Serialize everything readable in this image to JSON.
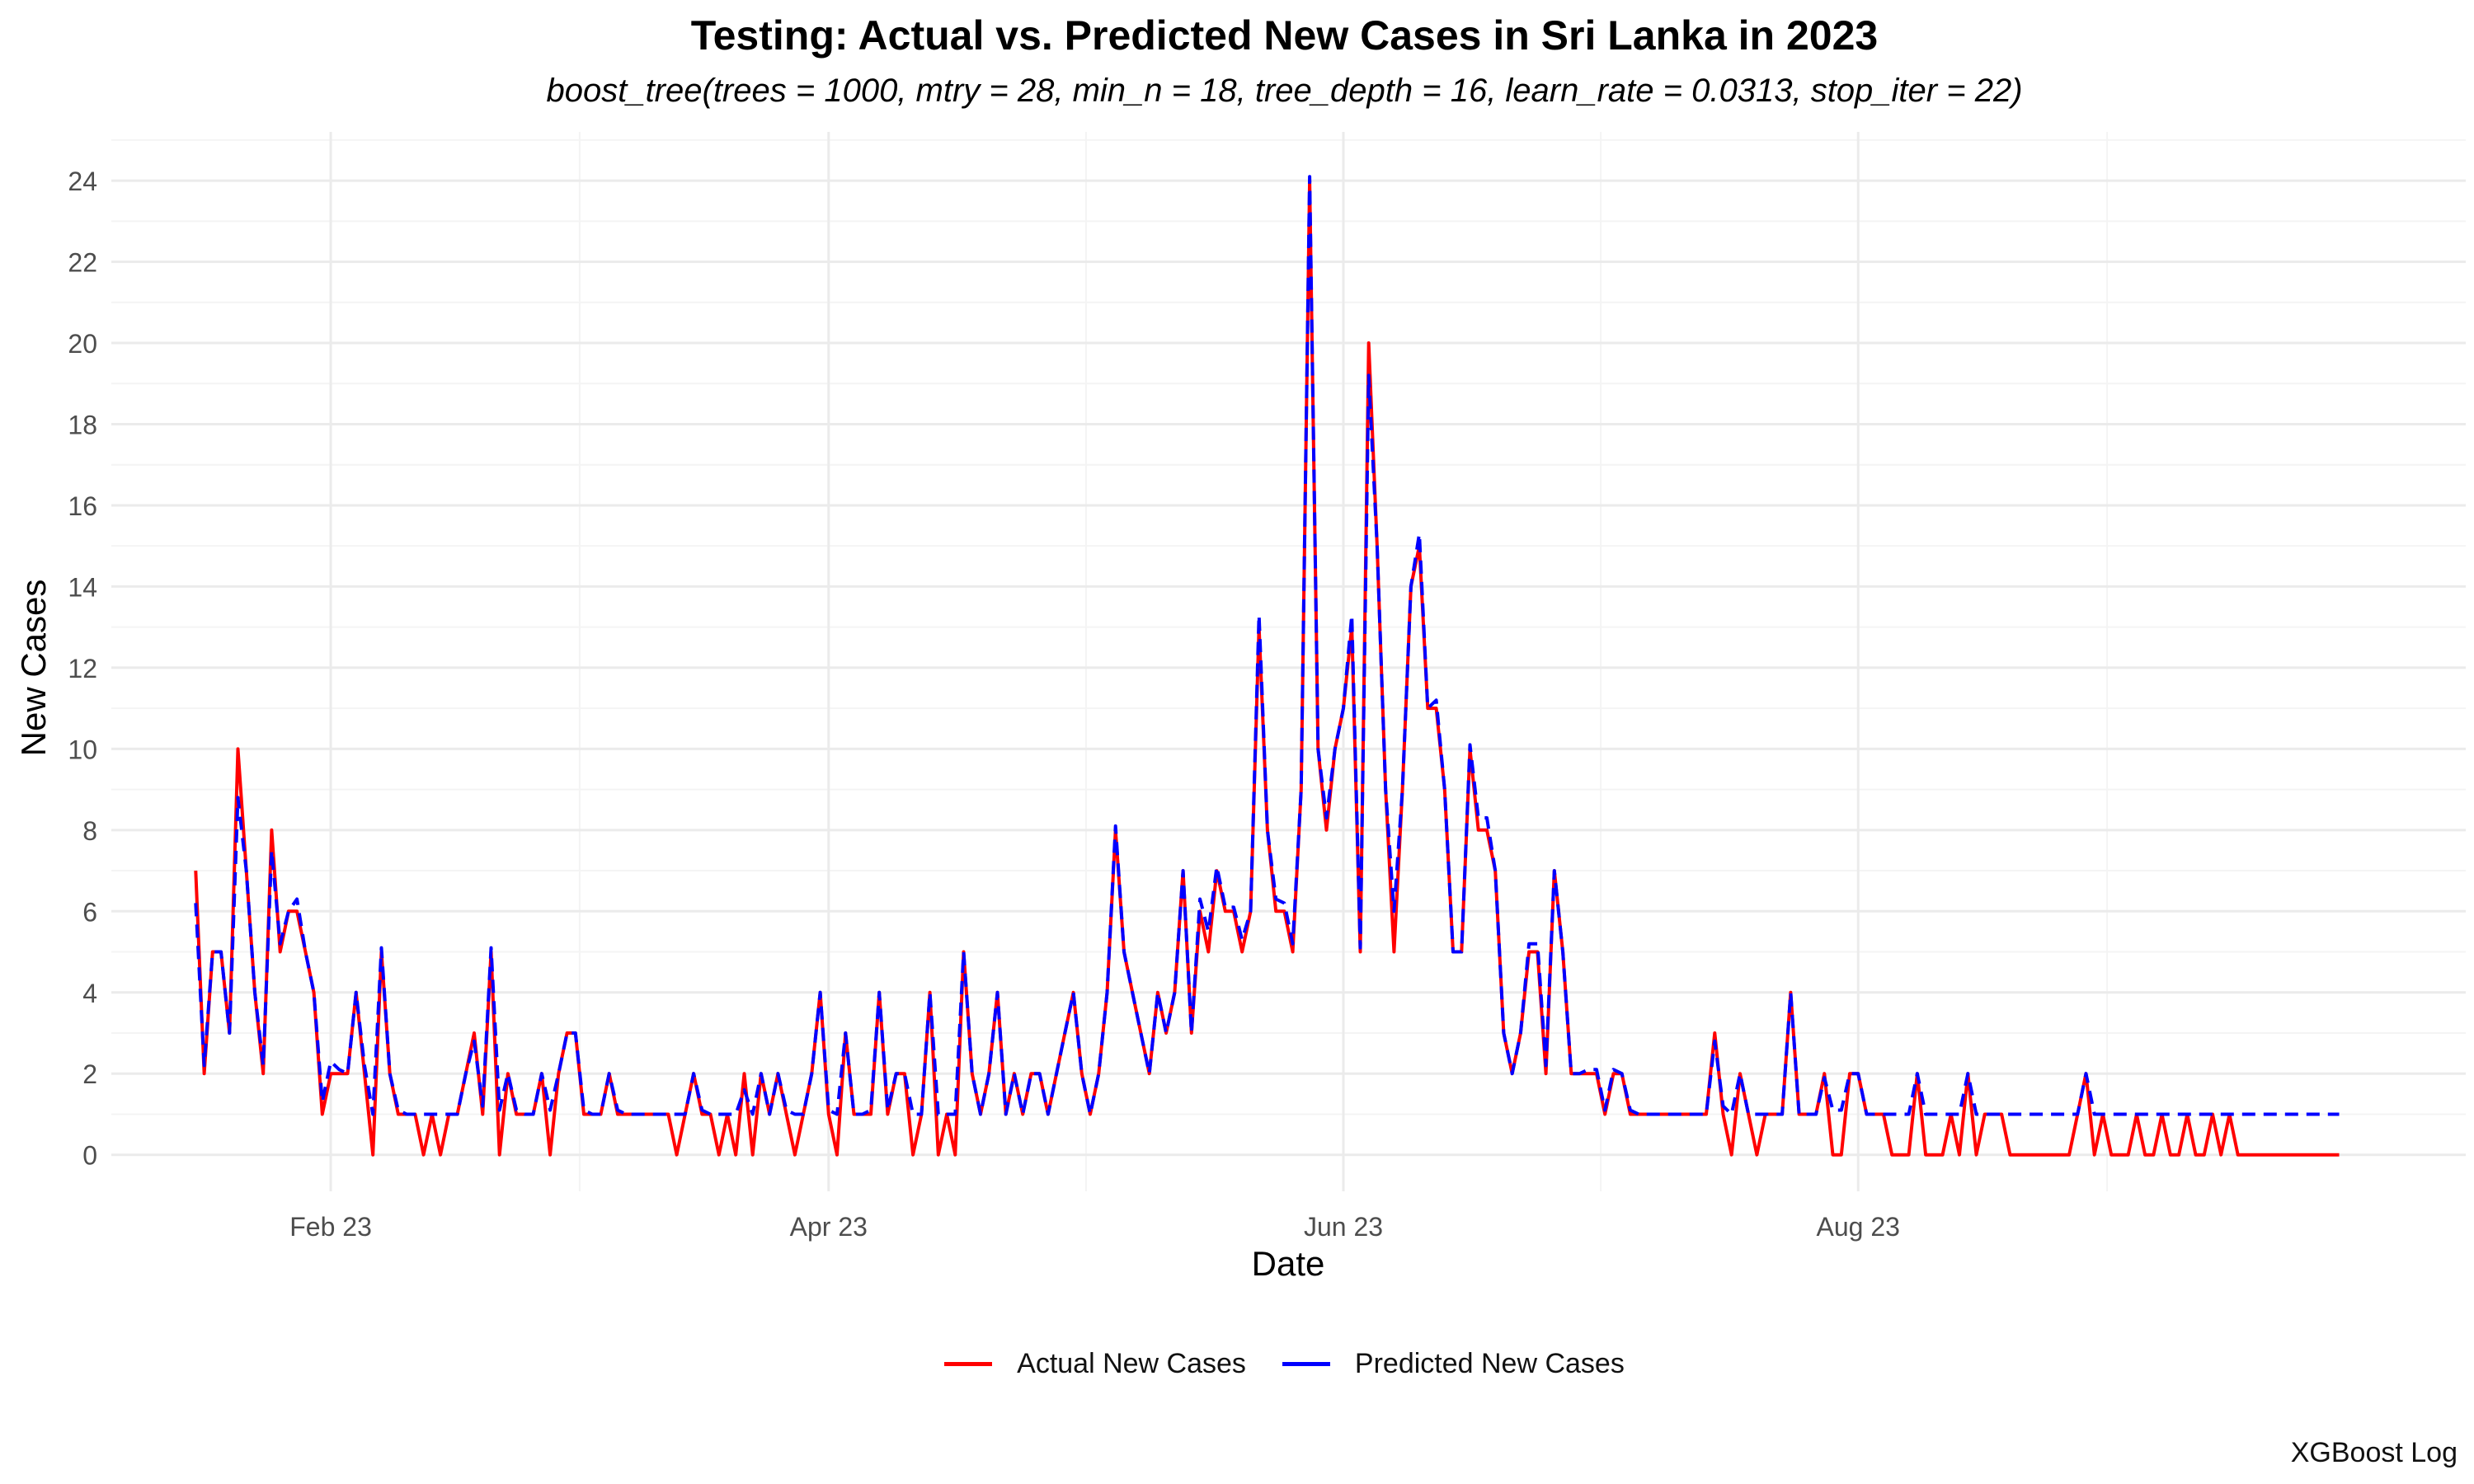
{
  "chart_data": {
    "type": "line",
    "title": "Testing: Actual vs. Predicted New Cases in Sri Lanka in 2023",
    "subtitle": "boost_tree(trees = 1000, mtry = 28, min_n = 18, tree_depth = 16, learn_rate = 0.0313, stop_iter = 22)",
    "xlabel": "Date",
    "ylabel": "New Cases",
    "caption": "XGBoost Log",
    "x_start": "2023-01-16",
    "x_ticks": [
      {
        "date": "2023-02-01",
        "label": "Feb 23"
      },
      {
        "date": "2023-04-01",
        "label": "Apr 23"
      },
      {
        "date": "2023-06-01",
        "label": "Jun 23"
      },
      {
        "date": "2023-08-01",
        "label": "Aug 23"
      }
    ],
    "y_ticks": [
      0,
      2,
      4,
      6,
      8,
      10,
      12,
      14,
      16,
      18,
      20,
      22,
      24
    ],
    "xlim": [
      "2023-01-06",
      "2023-10-12"
    ],
    "ylim": [
      -0.9,
      25.2
    ],
    "grid": true,
    "legend_position": "bottom",
    "series": [
      {
        "name": "Actual New Cases",
        "color": "#ff0000",
        "dash": "solid",
        "values": [
          7,
          2,
          5,
          5,
          3,
          10,
          7,
          4,
          2,
          8,
          5,
          6,
          6,
          5,
          4,
          1,
          2,
          2,
          2,
          4,
          2,
          0,
          5,
          2,
          1,
          1,
          1,
          0,
          1,
          0,
          1,
          1,
          2,
          3,
          1,
          5,
          0,
          2,
          1,
          1,
          1,
          2,
          0,
          2,
          3,
          3,
          1,
          1,
          1,
          2,
          1,
          1,
          1,
          1,
          1,
          1,
          1,
          0,
          1,
          2,
          1,
          1,
          0,
          1,
          0,
          2,
          0,
          2,
          1,
          2,
          1,
          0,
          1,
          2,
          4,
          1,
          0,
          3,
          1,
          1,
          1,
          4,
          1,
          2,
          2,
          0,
          1,
          4,
          0,
          1,
          0,
          5,
          2,
          1,
          2,
          4,
          1,
          2,
          1,
          2,
          2,
          1,
          2,
          3,
          4,
          2,
          1,
          2,
          4,
          8,
          5,
          4,
          3,
          2,
          4,
          3,
          4,
          7,
          3,
          6,
          5,
          7,
          6,
          6,
          5,
          6,
          13,
          8,
          6,
          6,
          5,
          9,
          24,
          10,
          8,
          10,
          11,
          13,
          5,
          20,
          15,
          9,
          5,
          9,
          14,
          15,
          11,
          11,
          9,
          5,
          5,
          10,
          8,
          8,
          7,
          3,
          2,
          3,
          5,
          5,
          2,
          7,
          5,
          2,
          2,
          2,
          2,
          1,
          2,
          2,
          1,
          1,
          1,
          1,
          1,
          1,
          1,
          1,
          1,
          1,
          3,
          1,
          0,
          2,
          1,
          0,
          1,
          1,
          1,
          4,
          1,
          1,
          1,
          2,
          0,
          0,
          2,
          2,
          1,
          1,
          1,
          0,
          0,
          0,
          2,
          0,
          0,
          0,
          1,
          0,
          2,
          0,
          1,
          1,
          1,
          0,
          0,
          0,
          0,
          0,
          0,
          0,
          0,
          1,
          2,
          0,
          1,
          0,
          0,
          0,
          1,
          0,
          0,
          1,
          0,
          0,
          1,
          0,
          0,
          1,
          0,
          1,
          0,
          0,
          0,
          0,
          0,
          0,
          0,
          0,
          0,
          0,
          0,
          0,
          0
        ]
      },
      {
        "name": "Predicted New Cases",
        "color": "#0000ff",
        "dash": "dashed",
        "values": [
          6.2,
          2.2,
          5,
          5,
          3,
          8.8,
          7,
          4,
          2.2,
          7.5,
          5.2,
          6,
          6.3,
          5,
          4,
          1.3,
          2.3,
          2.1,
          2,
          4,
          2.2,
          1,
          5.1,
          2,
          1.1,
          1,
          1,
          1,
          1,
          1,
          1,
          1,
          2,
          2.8,
          1.2,
          5.1,
          1.1,
          2,
          1.1,
          1,
          1,
          2,
          1.1,
          2,
          3,
          3,
          1.1,
          1,
          1,
          2,
          1.1,
          1,
          1,
          1,
          1,
          1,
          1,
          1,
          1,
          2,
          1.1,
          1,
          1,
          1,
          1,
          1.6,
          1,
          2,
          1,
          2,
          1.1,
          1,
          1,
          2,
          4,
          1.1,
          1,
          3,
          1,
          1,
          1.1,
          4,
          1.1,
          2,
          2,
          1,
          1,
          4,
          1,
          1,
          1,
          5,
          2,
          1,
          2,
          4,
          1,
          2,
          1,
          2,
          2,
          1,
          2,
          3,
          4,
          2,
          1,
          2,
          4,
          8.1,
          5,
          4,
          3,
          2,
          4,
          3,
          4,
          7,
          3,
          6.3,
          5.5,
          7.1,
          6.1,
          6.1,
          5.3,
          6,
          13.3,
          8,
          6.3,
          6.2,
          5.2,
          9,
          24.1,
          10,
          8.3,
          10,
          11,
          13.3,
          5.1,
          19.2,
          15,
          9,
          6,
          9,
          14,
          15.3,
          11,
          11.2,
          9,
          5,
          5,
          10.1,
          8.3,
          8.3,
          7,
          3,
          2,
          3,
          5.2,
          5.2,
          2.2,
          7,
          5,
          2,
          2,
          2.1,
          2.1,
          1.1,
          2.1,
          2,
          1.1,
          1,
          1,
          1,
          1,
          1,
          1,
          1,
          1,
          1,
          2.8,
          1.2,
          1,
          2,
          1,
          1,
          1,
          1,
          1,
          4,
          1,
          1,
          1,
          1.9,
          1.1,
          1.1,
          2,
          2,
          1,
          1,
          1,
          1,
          1,
          1,
          2,
          1,
          1,
          1,
          1,
          1,
          2,
          1,
          1,
          1,
          1,
          1,
          1,
          1,
          1,
          1,
          1,
          1,
          1,
          1,
          2,
          1,
          1,
          1,
          1,
          1,
          1,
          1,
          1,
          1,
          1,
          1,
          1,
          1,
          1,
          1,
          1,
          1,
          1,
          1,
          1,
          1,
          1,
          1,
          1,
          1,
          1,
          1,
          1,
          1,
          1
        ]
      }
    ]
  }
}
